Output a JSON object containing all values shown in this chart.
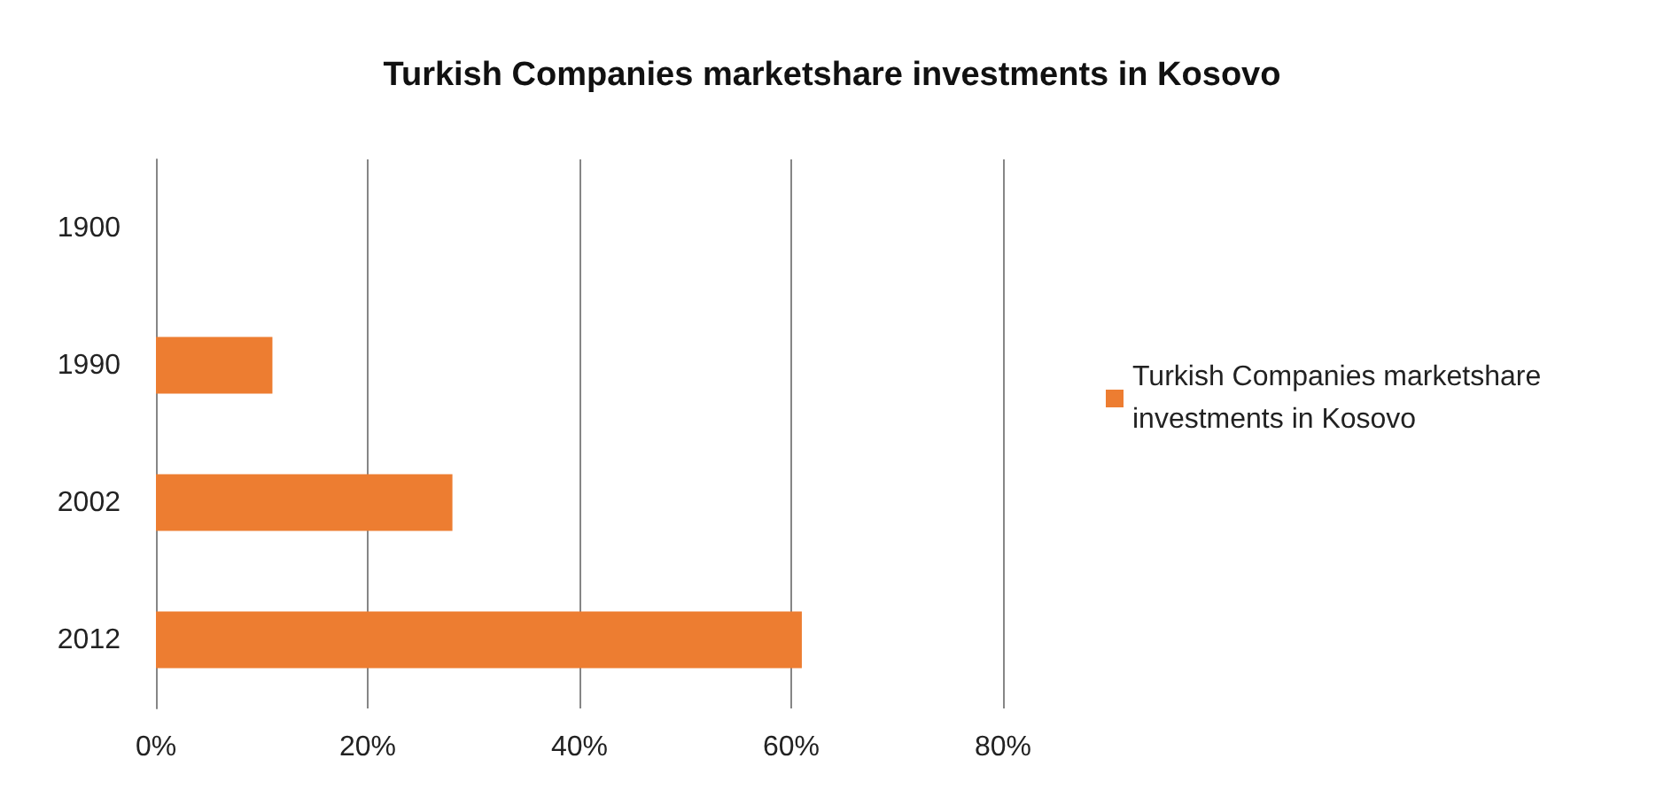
{
  "chart_data": {
    "type": "bar",
    "orientation": "horizontal",
    "title": "Turkish Companies marketshare investments in Kosovo",
    "categories": [
      "1900",
      "1990",
      "2002",
      "2012"
    ],
    "series": [
      {
        "name": "Turkish Companies marketshare investments in Kosovo",
        "color": "#ed7d31",
        "values": [
          0,
          11,
          28,
          61
        ]
      }
    ],
    "xlim": [
      0,
      80
    ],
    "xticks": [
      {
        "value": 0,
        "label": "0%"
      },
      {
        "value": 20,
        "label": "20%"
      },
      {
        "value": 40,
        "label": "40%"
      },
      {
        "value": 60,
        "label": "60%"
      },
      {
        "value": 80,
        "label": "80%"
      }
    ],
    "grid": "x",
    "legend": "right"
  }
}
